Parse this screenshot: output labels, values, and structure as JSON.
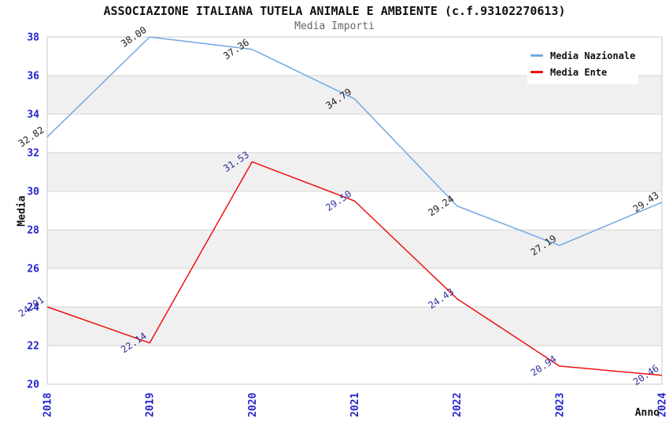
{
  "title": "ASSOCIAZIONE ITALIANA TUTELA ANIMALE E AMBIENTE (c.f.93102270613)",
  "subtitle": "Media Importi",
  "legend": {
    "items": [
      {
        "label": "Media Nazionale",
        "color": "#74a9e2"
      },
      {
        "label": "Media Ente",
        "color": "#ee1111"
      }
    ]
  },
  "chart_data": {
    "type": "line",
    "x": [
      2018,
      2019,
      2020,
      2021,
      2022,
      2023,
      2024
    ],
    "series": [
      {
        "name": "Media Nazionale",
        "color": "#74a9e2",
        "label_color": "#1f1f1f",
        "values": [
          32.82,
          38.0,
          37.36,
          34.79,
          29.24,
          27.19,
          29.43
        ]
      },
      {
        "name": "Media Ente",
        "color": "#ee1111",
        "label_color": "#30309a",
        "values": [
          24.01,
          22.14,
          31.53,
          29.5,
          24.43,
          20.94,
          20.46
        ]
      }
    ],
    "xlabel": "Anno",
    "ylabel": "Media",
    "ylim": [
      20,
      38
    ],
    "ytick_step": 2,
    "grid": true,
    "legend_position": "top-right",
    "tick_color": "#2323cd",
    "band_color": "#f0f0f0",
    "grid_color": "#d4d4d4",
    "spine_color": "#c8c8c8"
  }
}
